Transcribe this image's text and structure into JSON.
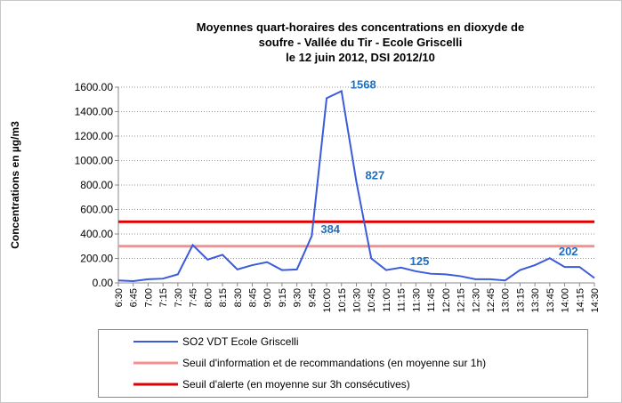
{
  "chart_data": {
    "type": "line",
    "title": [
      "Moyennes quart-horaires des concentrations en dioxyde de",
      "soufre - Vallée du Tir - Ecole Griscelli",
      "le 12 juin 2012, DSI 2012/10"
    ],
    "y_label": "Concentrations en µg/m3",
    "categories": [
      "6:30",
      "6:45",
      "7:00",
      "7:15",
      "7:30",
      "7:45",
      "8:00",
      "8:15",
      "8:30",
      "8:45",
      "9:00",
      "9:15",
      "9:30",
      "9:45",
      "10:00",
      "10:15",
      "10:30",
      "10:45",
      "11:00",
      "11:15",
      "11:30",
      "11:45",
      "12:00",
      "12:15",
      "12:30",
      "12:45",
      "13:00",
      "13:15",
      "13:30",
      "13:45",
      "14:00",
      "14:15",
      "14:30"
    ],
    "series": [
      {
        "name": "SO2 VDT Ecole Griscelli",
        "color": "#3b5bdb",
        "values": [
          20,
          15,
          30,
          35,
          70,
          310,
          190,
          230,
          110,
          145,
          170,
          105,
          110,
          384,
          1510,
          1568,
          827,
          200,
          105,
          125,
          95,
          75,
          70,
          55,
          30,
          30,
          20,
          105,
          145,
          202,
          130,
          130,
          40
        ]
      }
    ],
    "labeled_points": [
      13,
      15,
      16,
      19,
      29
    ],
    "thresholds": [
      {
        "name": "Seuil d'information et de recommandations (en moyenne sur 1h)",
        "color": "#f4908f",
        "value": 300
      },
      {
        "name": "Seuil d'alerte (en moyenne sur 3h consécutives)",
        "color": "#e00000",
        "value": 500
      }
    ],
    "ylim": [
      0,
      1600
    ],
    "yticks": [
      {
        "value": 0,
        "label": "0.00"
      },
      {
        "value": 200,
        "label": "200.00"
      },
      {
        "value": 400,
        "label": "400.00"
      },
      {
        "value": 600,
        "label": "600.00"
      },
      {
        "value": 800,
        "label": "800.00"
      },
      {
        "value": 1000,
        "label": "1000.00"
      },
      {
        "value": 1200,
        "label": "1200.00"
      },
      {
        "value": 1400,
        "label": "1400.00"
      },
      {
        "value": 1600,
        "label": "1600.00"
      }
    ],
    "grid": true
  }
}
